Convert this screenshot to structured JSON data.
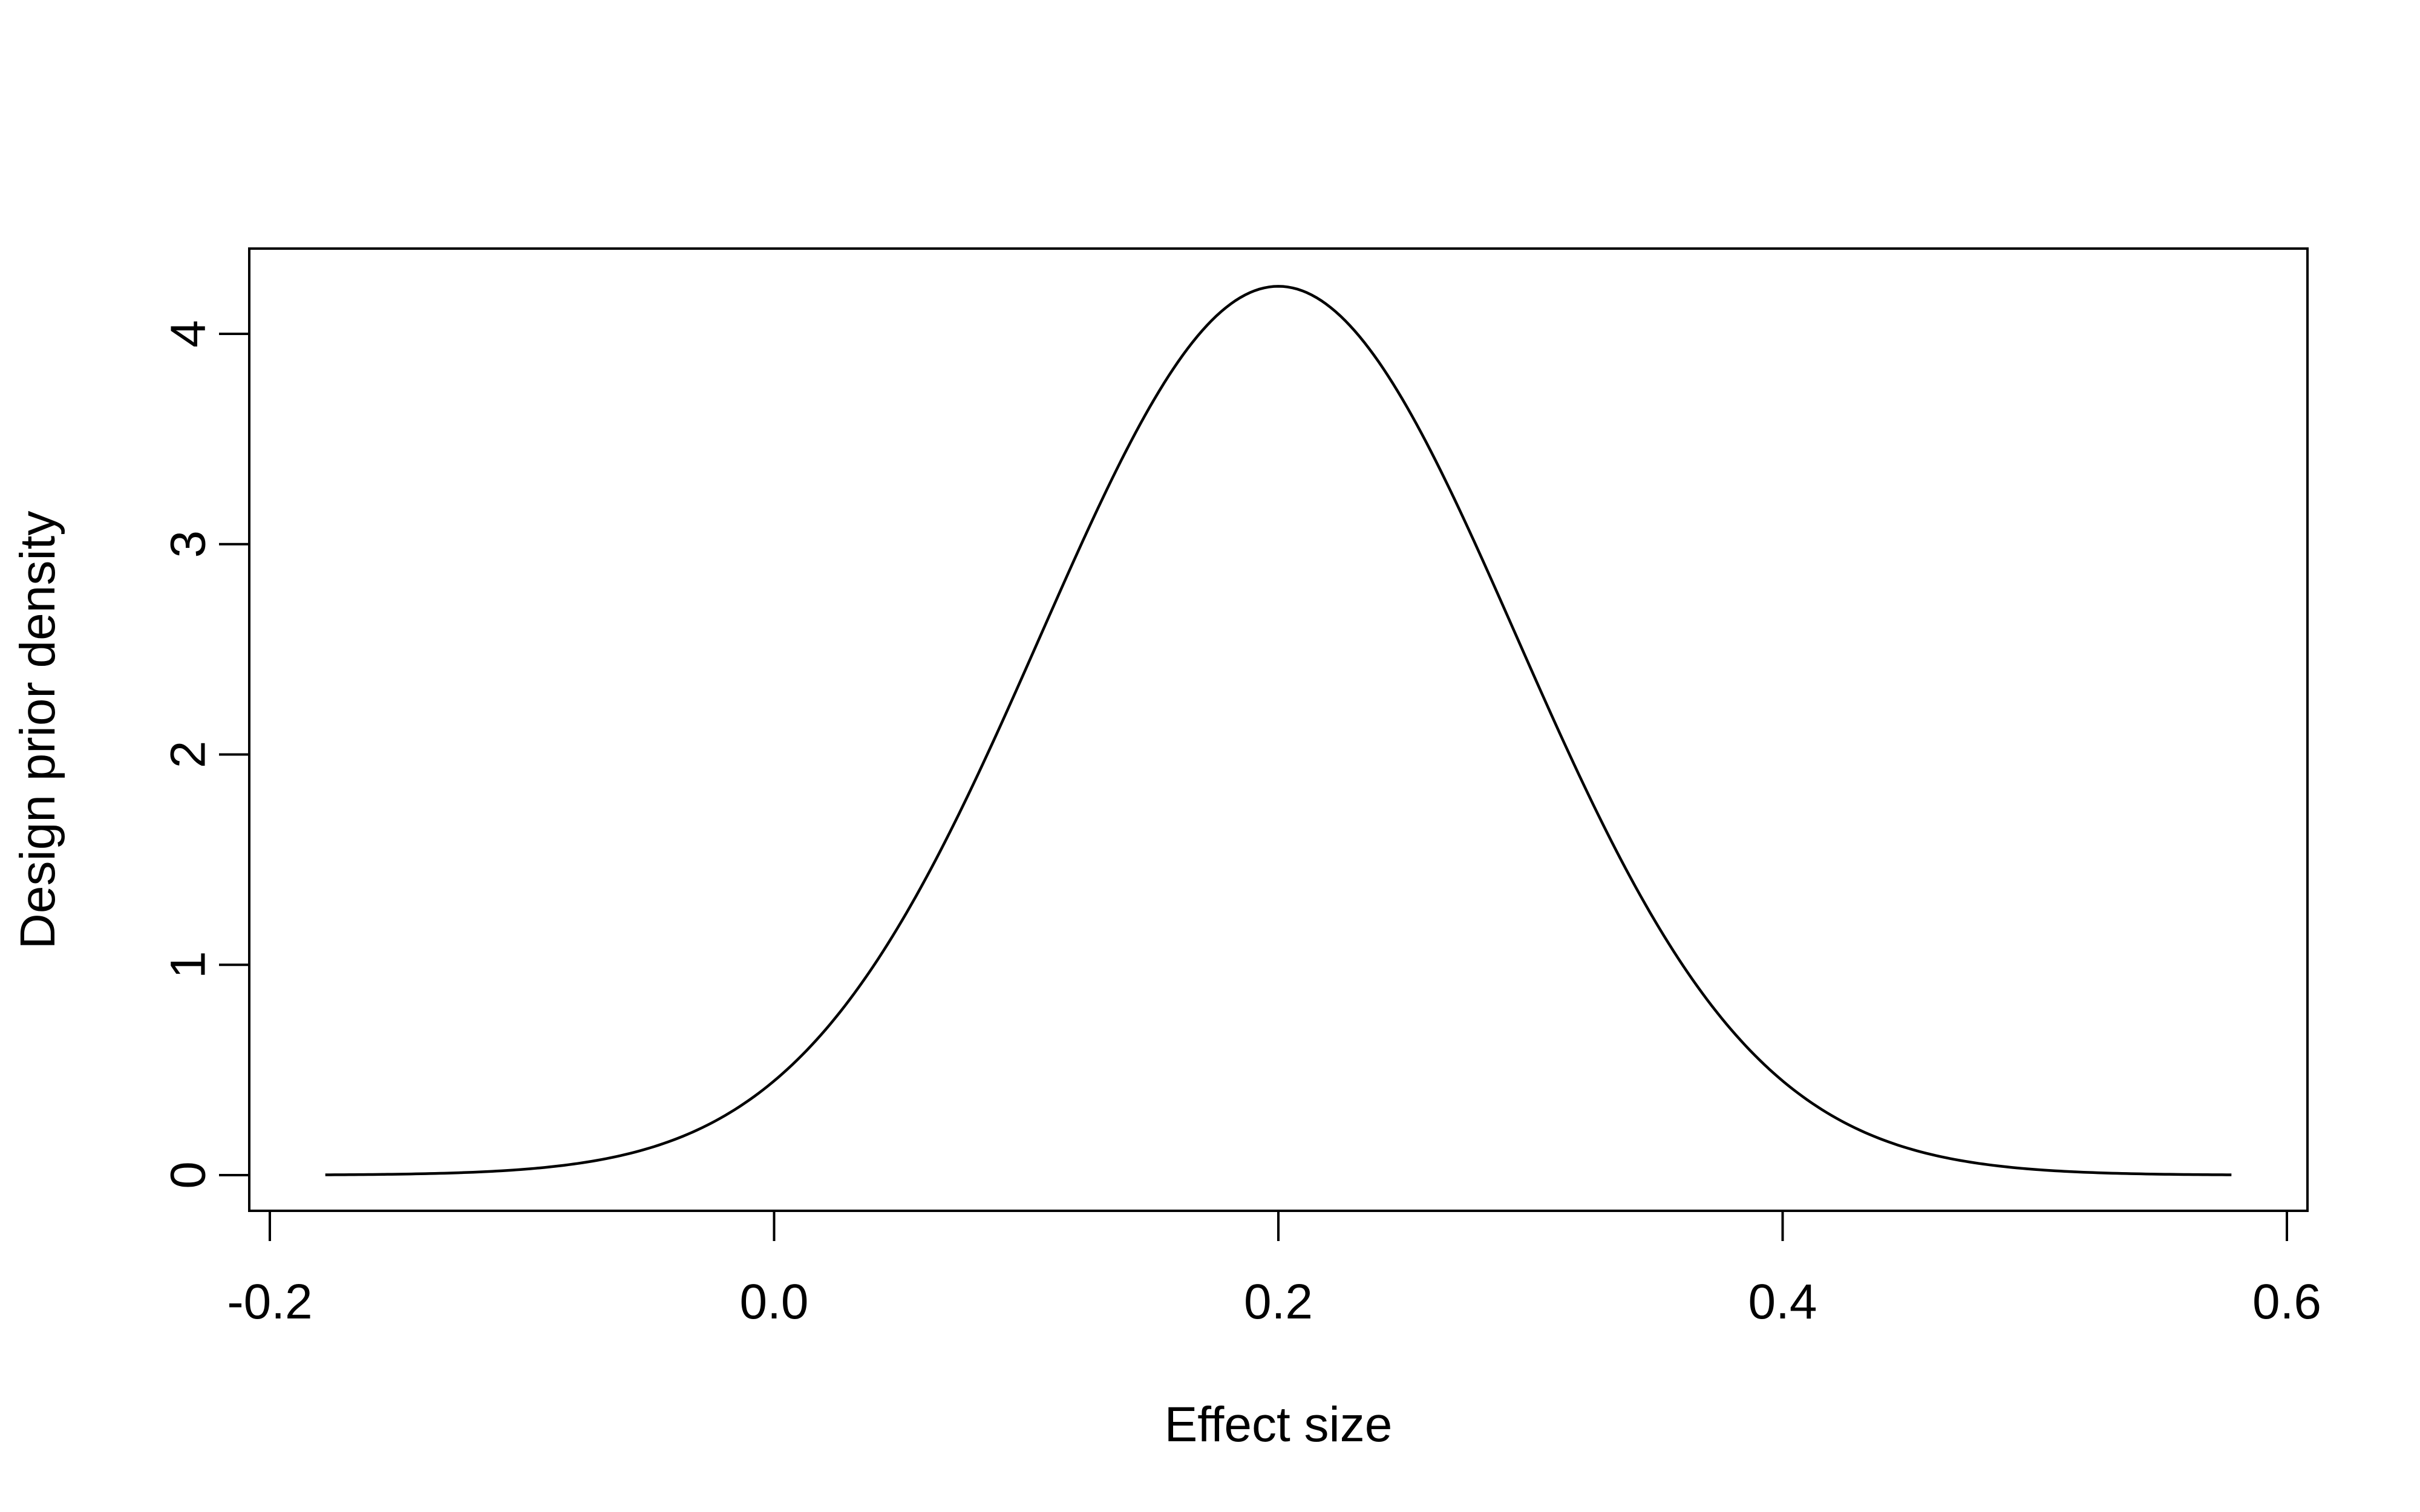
{
  "chart_data": {
    "type": "line",
    "title": "",
    "xlabel": "Effect size",
    "ylabel": "Design prior density",
    "xlim": [
      -0.2,
      0.6
    ],
    "ylim": [
      0,
      4.25
    ],
    "x_ticks": [
      "-0.2",
      "0.0",
      "0.2",
      "0.4",
      "0.6"
    ],
    "y_ticks": [
      "0",
      "1",
      "2",
      "3",
      "4"
    ],
    "grid": false,
    "legend": "none",
    "line_color": "#000000",
    "curve": {
      "distribution": "normal",
      "mean": 0.2,
      "sd": 0.0944,
      "x_start": -0.178,
      "x_end": 0.578
    },
    "series": [
      {
        "x": [
          -0.178,
          -0.15,
          -0.1,
          -0.05,
          0.0,
          0.05,
          0.1,
          0.15,
          0.2,
          0.25,
          0.3,
          0.35,
          0.4,
          0.45,
          0.5,
          0.55,
          0.578
        ],
        "values": [
          0.0,
          0.01,
          0.05,
          0.13,
          0.44,
          1.25,
          2.41,
          3.71,
          4.23,
          3.71,
          2.41,
          1.25,
          0.44,
          0.13,
          0.05,
          0.01,
          0.0
        ]
      }
    ]
  }
}
